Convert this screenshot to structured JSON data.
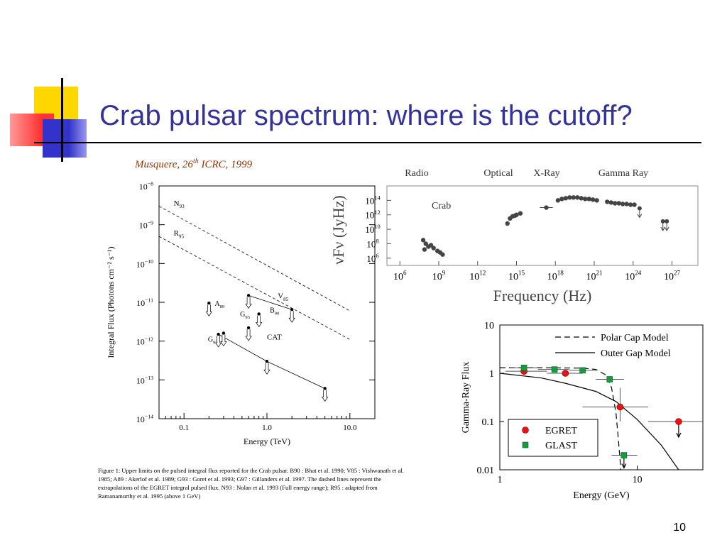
{
  "slide": {
    "title": "Crab pulsar spectrum: where is the cutoff?",
    "citation_prefix": "Musquere, 26",
    "citation_sup": "th",
    "citation_suffix": " ICRC, 1999",
    "page_number": "10",
    "accent_colors": {
      "yellow": "#ffd700",
      "red": "#ff3333",
      "blue": "#3333cc",
      "title": "#33339a",
      "citation": "#993300"
    }
  },
  "caption": {
    "text": "Figure 1: Upper limits on the pulsed integral flux reported for the Crab pulsar. B90 : Bhat et al. 1990; V85 : Vishwanath et al. 1985; A89 : Akerlof et al. 1989; G93 : Goret et al. 1993; G97 : Gillanders et al. 1997. The dashed lines represent the extrapolations of the EGRET integral pulsed flux. N93 : Nolan et al. 1993 (Full energy range); R95 : adapted from Ramanamurthy et al. 1995 (above 1 GeV)"
  },
  "chart_data": [
    {
      "type": "scatter",
      "id": "integral-flux",
      "xlabel": "Energy (TeV)",
      "ylabel": "Integral Flux (Photons cm⁻² s⁻¹)",
      "xscale": "log",
      "yscale": "log",
      "xlim": [
        0.05,
        20
      ],
      "ylim": [
        1e-14,
        1e-08
      ],
      "xticks": [
        {
          "v": 0.1,
          "label": "0.1"
        },
        {
          "v": 1,
          "label": "1.0"
        },
        {
          "v": 10,
          "label": "10.0"
        }
      ],
      "yticks": [
        {
          "v": 1e-08,
          "base": "10",
          "exp": "−8"
        },
        {
          "v": 1e-09,
          "base": "10",
          "exp": "−9"
        },
        {
          "v": 1e-10,
          "base": "10",
          "exp": "−10"
        },
        {
          "v": 1e-11,
          "base": "10",
          "exp": "−11"
        },
        {
          "v": 1e-12,
          "base": "10",
          "exp": "−12"
        },
        {
          "v": 1e-13,
          "base": "10",
          "exp": "−13"
        },
        {
          "v": 1e-14,
          "base": "10",
          "exp": "−14"
        }
      ],
      "dashed_lines": [
        {
          "name": "N93",
          "label": "N",
          "sub": "93",
          "x": [
            0.05,
            10
          ],
          "y": [
            3e-09,
            6e-12
          ]
        },
        {
          "name": "R95",
          "label": "R",
          "sub": "95",
          "x": [
            0.05,
            10
          ],
          "y": [
            5e-10,
            1.1e-12
          ]
        }
      ],
      "upper_limits": [
        {
          "label": "A",
          "sub": "89",
          "x": 0.2,
          "y": 9.5e-12
        },
        {
          "label": "G",
          "sub": "97",
          "x": 0.3,
          "y": 1.6e-12
        },
        {
          "label": "G",
          "sub": "93",
          "x": 0.6,
          "y": 2.2e-12
        },
        {
          "label": "B",
          "sub": "90",
          "x": 0.6,
          "y": 1.5e-11
        },
        {
          "label": "",
          "sub": "",
          "x": 0.26,
          "y": 1.5e-12
        },
        {
          "label": "",
          "sub": "",
          "x": 0.8,
          "y": 5e-12
        },
        {
          "label": "",
          "sub": "",
          "x": 2.0,
          "y": 6.5e-12
        },
        {
          "label": "",
          "sub": "",
          "x": 1.0,
          "y": 3e-13
        },
        {
          "label": "",
          "sub": "",
          "x": 5.0,
          "y": 6e-14
        }
      ],
      "solid_lines": [
        {
          "name": "V85",
          "label": "V",
          "sub": "85",
          "x": [
            0.6,
            2.0
          ],
          "y": [
            1.5e-11,
            6.5e-12
          ]
        },
        {
          "name": "CAT",
          "label": "CAT",
          "sub": "",
          "x": [
            0.26,
            1.0,
            5.0
          ],
          "y": [
            1.5e-12,
            3e-13,
            6e-14
          ]
        }
      ]
    },
    {
      "type": "scatter",
      "id": "crab-sed",
      "title": "Crab",
      "xlabel": "Frequency (Hz)",
      "ylabel": "νFν (JyHz)",
      "xscale": "log",
      "yscale": "log",
      "xlim": [
        100000.0,
        1e+29
      ],
      "ylim": [
        100000.0,
        1e+16
      ],
      "xticks": [
        {
          "base": "10",
          "exp": "6",
          "v": 6
        },
        {
          "base": "10",
          "exp": "9",
          "v": 9
        },
        {
          "base": "10",
          "exp": "12",
          "v": 12
        },
        {
          "base": "10",
          "exp": "15",
          "v": 15
        },
        {
          "base": "10",
          "exp": "18",
          "v": 18
        },
        {
          "base": "10",
          "exp": "21",
          "v": 21
        },
        {
          "base": "10",
          "exp": "24",
          "v": 24
        },
        {
          "base": "10",
          "exp": "27",
          "v": 27
        }
      ],
      "yticks": [
        {
          "base": "10",
          "exp": "14",
          "v": 14
        },
        {
          "base": "10",
          "exp": "12",
          "v": 12
        },
        {
          "base": "10",
          "exp": "10",
          "v": 10
        },
        {
          "base": "10",
          "exp": "8",
          "v": 8
        },
        {
          "base": "10",
          "exp": "6",
          "v": 6
        }
      ],
      "band_labels": [
        "Radio",
        "Optical",
        "X-Ray",
        "Gamma Ray"
      ],
      "log_points": [
        [
          7.8,
          8.5
        ],
        [
          8.0,
          8.0
        ],
        [
          8.2,
          7.6
        ],
        [
          8.4,
          7.8
        ],
        [
          8.6,
          7.4
        ],
        [
          8.9,
          7.0
        ],
        [
          9.3,
          6.5
        ],
        [
          9.1,
          6.8
        ],
        [
          7.9,
          7.2
        ],
        [
          14.3,
          10.8
        ],
        [
          14.5,
          11.5
        ],
        [
          14.7,
          11.8
        ],
        [
          15.0,
          12.0
        ],
        [
          15.3,
          12.2
        ],
        [
          14.9,
          11.9
        ],
        [
          17.3,
          13.0
        ],
        [
          18.2,
          14.0
        ],
        [
          18.5,
          14.2
        ],
        [
          18.8,
          14.3
        ],
        [
          19.1,
          14.4
        ],
        [
          19.4,
          14.4
        ],
        [
          19.7,
          14.4
        ],
        [
          20.0,
          14.3
        ],
        [
          20.3,
          14.2
        ],
        [
          20.6,
          14.2
        ],
        [
          20.9,
          14.1
        ],
        [
          21.2,
          14.0
        ],
        [
          22.0,
          13.8
        ],
        [
          22.3,
          13.7
        ],
        [
          22.6,
          13.6
        ],
        [
          22.9,
          13.6
        ],
        [
          23.2,
          13.5
        ],
        [
          23.5,
          13.5
        ],
        [
          23.8,
          13.4
        ],
        [
          24.1,
          13.4
        ]
      ],
      "log_upper_limits": [
        [
          24.5,
          12.9
        ],
        [
          26.3,
          11.1
        ],
        [
          26.6,
          11.1
        ]
      ]
    },
    {
      "type": "line",
      "id": "gamma-ray-flux-model",
      "xlabel": "Energy (GeV)",
      "ylabel": "Gamma-Ray Flux",
      "xscale": "log",
      "yscale": "log",
      "xlim": [
        1,
        30
      ],
      "ylim": [
        0.01,
        10
      ],
      "xticks": [
        {
          "v": 1,
          "label": "1"
        },
        {
          "v": 10,
          "label": "10"
        }
      ],
      "yticks": [
        {
          "v": 10,
          "label": "10"
        },
        {
          "v": 1,
          "label": "1"
        },
        {
          "v": 0.1,
          "label": "0.1"
        },
        {
          "v": 0.01,
          "label": "0.01"
        }
      ],
      "series": [
        {
          "name": "Polar Cap Model",
          "style": "dashed",
          "x": [
            1,
            2,
            4,
            5,
            6,
            6.5,
            7,
            7.3,
            7.6
          ],
          "y": [
            1.3,
            1.3,
            1.28,
            1.2,
            0.9,
            0.5,
            0.15,
            0.04,
            0.01
          ]
        },
        {
          "name": "Outer Gap Model",
          "style": "solid",
          "x": [
            1,
            2,
            3,
            5,
            7,
            10,
            15,
            20
          ],
          "y": [
            1.0,
            0.8,
            0.62,
            0.42,
            0.26,
            0.11,
            0.032,
            0.01
          ]
        }
      ],
      "legend_models": [
        "Polar Cap Model",
        "Outer Gap Model"
      ],
      "legend_data": [
        "EGRET",
        "GLAST"
      ],
      "EGRET": [
        {
          "x": 1.5,
          "y": 1.1,
          "xerr": [
            1.1,
            2.2
          ]
        },
        {
          "x": 3.0,
          "y": 1.0,
          "xerr": [
            2.2,
            4.0
          ]
        },
        {
          "x": 7.5,
          "y": 0.2,
          "xerr": [
            4.0,
            12.0
          ],
          "yerr": [
            0.1,
            0.5
          ]
        },
        {
          "x": 20,
          "y": 0.1,
          "xerr": [
            12,
            30
          ],
          "upper": true
        }
      ],
      "GLAST": [
        {
          "x": 1.5,
          "y": 1.3,
          "xerr": [
            1.2,
            1.9
          ]
        },
        {
          "x": 2.5,
          "y": 1.2,
          "xerr": [
            1.9,
            3.2
          ]
        },
        {
          "x": 4.0,
          "y": 1.15,
          "xerr": [
            3.2,
            5.0
          ]
        },
        {
          "x": 6.3,
          "y": 0.75,
          "xerr": [
            5.0,
            8.0
          ]
        },
        {
          "x": 8.0,
          "y": 0.02,
          "xerr": [
            6.5,
            10
          ],
          "upper": true
        }
      ]
    }
  ]
}
